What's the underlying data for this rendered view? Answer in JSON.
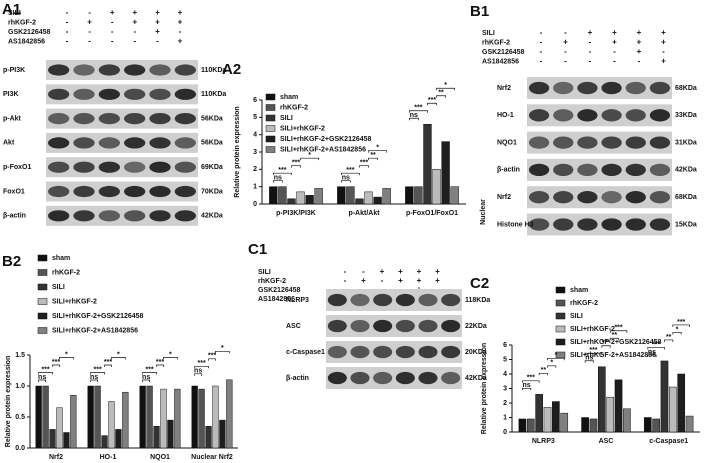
{
  "blots": [
    {
      "panel_label": "A1",
      "treatments": [
        {
          "name": "SILI",
          "signs": [
            "-",
            "-",
            "+",
            "+",
            "+",
            "+"
          ]
        },
        {
          "name": "rhKGF-2",
          "signs": [
            "-",
            "+",
            "-",
            "+",
            "+",
            "+"
          ]
        },
        {
          "name": "GSK2126458",
          "signs": [
            "-",
            "-",
            "-",
            "-",
            "+",
            "-"
          ]
        },
        {
          "name": "AS1842856",
          "signs": [
            "-",
            "-",
            "-",
            "-",
            "-",
            "+"
          ]
        }
      ],
      "rows": [
        {
          "protein": "p-PI3K",
          "size": "110KDa"
        },
        {
          "protein": "PI3K",
          "size": "110KDa"
        },
        {
          "protein": "p-Akt",
          "size": "56KDa"
        },
        {
          "protein": "Akt",
          "size": "56KDa"
        },
        {
          "protein": "p-FoxO1",
          "size": "69KDa"
        },
        {
          "protein": "FoxO1",
          "size": "70KDa"
        },
        {
          "protein": "β-actin",
          "size": "42KDa"
        }
      ]
    },
    {
      "panel_label": "B1",
      "treatments": [
        {
          "name": "SILI",
          "signs": [
            "-",
            "-",
            "+",
            "+",
            "+",
            "+"
          ]
        },
        {
          "name": "rhKGF-2",
          "signs": [
            "-",
            "+",
            "-",
            "+",
            "+",
            "+"
          ]
        },
        {
          "name": "GSK2126458",
          "signs": [
            "-",
            "-",
            "-",
            "-",
            "+",
            "-"
          ]
        },
        {
          "name": "AS1842856",
          "signs": [
            "-",
            "-",
            "-",
            "-",
            "-",
            "+"
          ]
        }
      ],
      "rows": [
        {
          "protein": "Nrf2",
          "size": "68KDa"
        },
        {
          "protein": "HO-1",
          "size": "33KDa"
        },
        {
          "protein": "NQO1",
          "size": "31KDa"
        },
        {
          "protein": "β-actin",
          "size": "42KDa"
        },
        {
          "protein": "Nrf2",
          "size": "68KDa"
        },
        {
          "protein": "Histone H3",
          "size": "15KDa"
        }
      ],
      "group_label": "Nuclear"
    },
    {
      "panel_label": "C1",
      "treatments": [
        {
          "name": "SILI",
          "signs": [
            "-",
            "-",
            "+",
            "+",
            "+",
            "+"
          ]
        },
        {
          "name": "rhKGF-2",
          "signs": [
            "-",
            "+",
            "-",
            "+",
            "+",
            "+"
          ]
        },
        {
          "name": "GSK2126458",
          "signs": [
            "-",
            "-",
            "-",
            "-",
            "+",
            "-"
          ]
        },
        {
          "name": "AS1842856",
          "signs": [
            "-",
            "-",
            "-",
            "-",
            "-",
            "+"
          ]
        }
      ],
      "rows": [
        {
          "protein": "NLRP3",
          "size": "118KDa"
        },
        {
          "protein": "ASC",
          "size": "22KDa"
        },
        {
          "protein": "c-Caspase1",
          "size": "20KDa"
        },
        {
          "protein": "β-actin",
          "size": "42KDa"
        }
      ]
    }
  ],
  "chart_data": [
    {
      "type": "bar",
      "panel_label": "A2",
      "ylabel": "Relative protein expression",
      "categories": [
        "p-PI3K/PI3K",
        "p-Akt/Akt",
        "p-FoxO1/FoxO1"
      ],
      "series": [
        {
          "name": "sham",
          "color": "#111111",
          "values": [
            1.0,
            1.0,
            1.0
          ]
        },
        {
          "name": "rhKGF-2",
          "color": "#555555",
          "values": [
            1.0,
            1.0,
            1.0
          ]
        },
        {
          "name": "SILI",
          "color": "#333333",
          "values": [
            0.3,
            0.3,
            4.6
          ]
        },
        {
          "name": "SILI+rhKGF-2",
          "color": "#bbbbbb",
          "values": [
            0.7,
            0.7,
            2.0
          ]
        },
        {
          "name": "SILI+rhKGF-2+GSK2126458",
          "color": "#1e1e1e",
          "values": [
            0.5,
            0.4,
            3.6
          ]
        },
        {
          "name": "SILI+rhKGF-2+AS1842856",
          "color": "#808080",
          "values": [
            0.9,
            0.9,
            1.0
          ]
        }
      ],
      "ylim": [
        0,
        6
      ],
      "yticks": [
        0,
        1,
        2,
        3,
        4,
        5,
        6
      ],
      "brackets": [
        {
          "category": 0,
          "pair": [
            0,
            1
          ],
          "label": "ns"
        },
        {
          "category": 0,
          "pair": [
            0,
            2
          ],
          "label": "***"
        },
        {
          "category": 0,
          "pair": [
            2,
            3
          ],
          "label": "***"
        },
        {
          "category": 0,
          "pair": [
            3,
            5
          ],
          "label": "*"
        },
        {
          "category": 1,
          "pair": [
            0,
            1
          ],
          "label": "ns"
        },
        {
          "category": 1,
          "pair": [
            0,
            2
          ],
          "label": "***"
        },
        {
          "category": 1,
          "pair": [
            2,
            3
          ],
          "label": "***"
        },
        {
          "category": 1,
          "pair": [
            3,
            4
          ],
          "label": "**"
        },
        {
          "category": 1,
          "pair": [
            3,
            5
          ],
          "label": "*"
        },
        {
          "category": 2,
          "pair": [
            0,
            1
          ],
          "label": "ns"
        },
        {
          "category": 2,
          "pair": [
            0,
            2
          ],
          "label": "***"
        },
        {
          "category": 2,
          "pair": [
            2,
            3
          ],
          "label": "***"
        },
        {
          "category": 2,
          "pair": [
            3,
            4
          ],
          "label": "**"
        },
        {
          "category": 2,
          "pair": [
            3,
            5
          ],
          "label": "*"
        }
      ]
    },
    {
      "type": "bar",
      "panel_label": "B2",
      "ylabel": "Relative protein expression",
      "categories": [
        "Nrf2",
        "HO-1",
        "NQO1",
        "Nuclear Nrf2"
      ],
      "series": [
        {
          "name": "sham",
          "color": "#111111",
          "values": [
            1.0,
            1.0,
            1.0,
            1.0
          ]
        },
        {
          "name": "rhKGF-2",
          "color": "#555555",
          "values": [
            1.0,
            1.0,
            1.0,
            0.95
          ]
        },
        {
          "name": "SILI",
          "color": "#333333",
          "values": [
            0.3,
            0.2,
            0.35,
            0.35
          ]
        },
        {
          "name": "SILI+rhKGF-2",
          "color": "#bbbbbb",
          "values": [
            0.65,
            0.75,
            0.95,
            1.0
          ]
        },
        {
          "name": "SILI+rhKGF-2+GSK2126458",
          "color": "#1e1e1e",
          "values": [
            0.25,
            0.3,
            0.45,
            0.45
          ]
        },
        {
          "name": "SILI+rhKGF-2+AS1842856",
          "color": "#808080",
          "values": [
            0.85,
            0.9,
            0.95,
            1.1
          ]
        }
      ],
      "ylim": [
        0,
        1.5
      ],
      "yticks": [
        {
          "value": 0,
          "label": "0.0"
        },
        {
          "value": 0.5,
          "label": "0.5"
        },
        {
          "value": 1,
          "label": "1.0"
        },
        {
          "value": 1.5,
          "label": "1.5"
        }
      ],
      "brackets": [
        {
          "category": 0,
          "pair": [
            0,
            1
          ],
          "label": "ns"
        },
        {
          "category": 0,
          "pair": [
            0,
            2
          ],
          "label": "***"
        },
        {
          "category": 0,
          "pair": [
            2,
            3
          ],
          "label": "***"
        },
        {
          "category": 0,
          "pair": [
            3,
            5
          ],
          "label": "*"
        },
        {
          "category": 1,
          "pair": [
            0,
            1
          ],
          "label": "ns"
        },
        {
          "category": 1,
          "pair": [
            0,
            2
          ],
          "label": "***"
        },
        {
          "category": 1,
          "pair": [
            2,
            3
          ],
          "label": "***"
        },
        {
          "category": 1,
          "pair": [
            3,
            5
          ],
          "label": "*"
        },
        {
          "category": 2,
          "pair": [
            0,
            1
          ],
          "label": "ns"
        },
        {
          "category": 2,
          "pair": [
            0,
            2
          ],
          "label": "***"
        },
        {
          "category": 2,
          "pair": [
            2,
            3
          ],
          "label": "***"
        },
        {
          "category": 2,
          "pair": [
            3,
            5
          ],
          "label": "*"
        },
        {
          "category": 3,
          "pair": [
            0,
            1
          ],
          "label": "ns"
        },
        {
          "category": 3,
          "pair": [
            0,
            2
          ],
          "label": "***"
        },
        {
          "category": 3,
          "pair": [
            2,
            3
          ],
          "label": "***"
        },
        {
          "category": 3,
          "pair": [
            3,
            5
          ],
          "label": "*"
        }
      ]
    },
    {
      "type": "bar",
      "panel_label": "C2",
      "ylabel": "Relative protein expression",
      "categories": [
        "NLRP3",
        "ASC",
        "c-Caspase1"
      ],
      "series": [
        {
          "name": "sham",
          "color": "#111111",
          "values": [
            0.9,
            1.0,
            1.0
          ]
        },
        {
          "name": "rhKGF-2",
          "color": "#555555",
          "values": [
            0.9,
            0.9,
            0.9
          ]
        },
        {
          "name": "SILI",
          "color": "#333333",
          "values": [
            2.6,
            4.5,
            4.9
          ]
        },
        {
          "name": "SILI+rhKGF-2",
          "color": "#bbbbbb",
          "values": [
            1.7,
            2.4,
            3.1
          ]
        },
        {
          "name": "SILI+rhKGF-2+GSK2126458",
          "color": "#1e1e1e",
          "values": [
            2.1,
            3.6,
            4.0
          ]
        },
        {
          "name": "SILI+rhKGF-2+AS1842856",
          "color": "#808080",
          "values": [
            1.3,
            1.6,
            1.1
          ]
        }
      ],
      "ylim": [
        0,
        6
      ],
      "yticks": [
        0,
        1,
        2,
        3,
        4,
        5,
        6
      ],
      "brackets": [
        {
          "category": 0,
          "pair": [
            0,
            1
          ],
          "label": "ns"
        },
        {
          "category": 0,
          "pair": [
            0,
            2
          ],
          "label": "***"
        },
        {
          "category": 0,
          "pair": [
            2,
            3
          ],
          "label": "**"
        },
        {
          "category": 0,
          "pair": [
            3,
            4
          ],
          "label": "*"
        },
        {
          "category": 0,
          "pair": [
            3,
            5
          ],
          "label": "*"
        },
        {
          "category": 1,
          "pair": [
            0,
            1
          ],
          "label": "ns"
        },
        {
          "category": 1,
          "pair": [
            0,
            2
          ],
          "label": "***"
        },
        {
          "category": 1,
          "pair": [
            2,
            3
          ],
          "label": "***"
        },
        {
          "category": 1,
          "pair": [
            3,
            4
          ],
          "label": "**"
        },
        {
          "category": 1,
          "pair": [
            3,
            5
          ],
          "label": "***"
        },
        {
          "category": 2,
          "pair": [
            0,
            1
          ],
          "label": "ns"
        },
        {
          "category": 2,
          "pair": [
            0,
            2
          ],
          "label": "***"
        },
        {
          "category": 2,
          "pair": [
            2,
            3
          ],
          "label": "**"
        },
        {
          "category": 2,
          "pair": [
            3,
            4
          ],
          "label": "*"
        },
        {
          "category": 2,
          "pair": [
            3,
            5
          ],
          "label": "***"
        }
      ]
    }
  ]
}
